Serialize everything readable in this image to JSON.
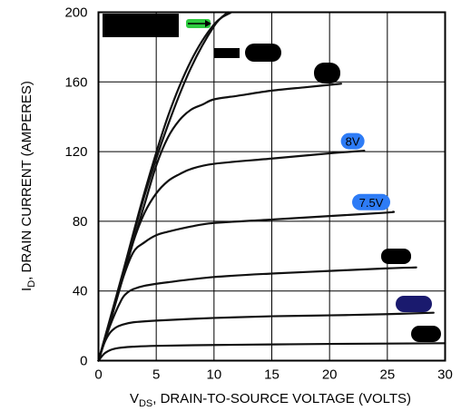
{
  "chart_data": {
    "type": "line",
    "xlabel_main": "V",
    "xlabel_sub": "DS",
    "xlabel_rest": ", DRAIN-TO-SOURCE VOLTAGE (VOLTS)",
    "ylabel_main": "I",
    "ylabel_sub": "D",
    "ylabel_rest": ", DRAIN CURRENT (AMPERES)",
    "xlim": [
      0,
      30
    ],
    "ylim": [
      0,
      200
    ],
    "xticks": [
      0,
      5,
      10,
      15,
      20,
      25,
      30
    ],
    "yticks": [
      0,
      40,
      80,
      120,
      160,
      200
    ],
    "grid": true,
    "series": [
      {
        "x": [
          0,
          0.5,
          1,
          1.5,
          2,
          3,
          5,
          10,
          15,
          20,
          25,
          30
        ],
        "y": [
          0,
          4,
          6,
          7,
          7.5,
          8,
          8.5,
          9,
          9.3,
          9.6,
          9.8,
          10
        ]
      },
      {
        "x": [
          0,
          0.5,
          1,
          1.5,
          2,
          3,
          5,
          10,
          15,
          20,
          25,
          29
        ],
        "y": [
          0,
          10,
          16,
          19,
          20.5,
          22,
          23,
          24.5,
          25.5,
          26,
          26.7,
          27.5
        ]
      },
      {
        "x": [
          0,
          1,
          2,
          2.5,
          3,
          4,
          6,
          10,
          15,
          20,
          25,
          27.5
        ],
        "y": [
          0,
          20,
          35,
          39,
          41,
          43,
          45,
          48,
          50,
          51.5,
          53,
          53.5
        ]
      },
      {
        "x": [
          0,
          1,
          2,
          3,
          4,
          5,
          6,
          8,
          10,
          15,
          20,
          25,
          25.5
        ],
        "y": [
          0,
          22,
          45,
          62,
          68,
          72,
          74,
          77,
          79,
          81,
          83,
          85,
          85.5
        ]
      },
      {
        "x": [
          0,
          1,
          2,
          3,
          4,
          5,
          6,
          7,
          8,
          10,
          15,
          20,
          23
        ],
        "y": [
          0,
          22,
          45,
          68,
          85,
          96,
          103,
          107,
          110,
          113,
          116,
          119,
          120.5
        ]
      },
      {
        "x": [
          0,
          1,
          2,
          3,
          4,
          5,
          6,
          7,
          8,
          9,
          10,
          12,
          15,
          18,
          21
        ],
        "y": [
          0,
          22,
          45,
          68,
          90,
          112,
          128,
          138,
          144,
          147,
          150,
          152,
          155,
          157,
          159
        ]
      },
      {
        "x": [
          0,
          2,
          4,
          6,
          8,
          10,
          11.2
        ],
        "y": [
          0,
          47,
          95,
          135,
          168,
          192,
          200
        ]
      },
      {
        "x": [
          0,
          2,
          4,
          6,
          8,
          10,
          11.5
        ],
        "y": [
          0,
          48,
          97,
          140,
          172,
          193,
          200
        ]
      }
    ],
    "annotations": [
      {
        "text": "8V",
        "x": 22.0,
        "y": 126,
        "color": "#2e7cf6"
      },
      {
        "text": "7.5V",
        "x": 23.6,
        "y": 91,
        "color": "#2e7cf6"
      }
    ]
  },
  "redaction_color": "#000000",
  "arrow_color": "#2ecc40"
}
